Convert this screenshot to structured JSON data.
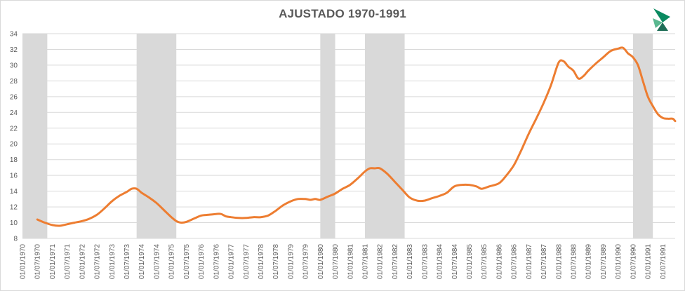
{
  "chart_data": {
    "type": "line",
    "title": "AJUSTADO 1970-1991",
    "ylim": [
      8,
      34
    ],
    "yticks": [
      8,
      10,
      12,
      14,
      16,
      18,
      20,
      22,
      24,
      26,
      28,
      30,
      32,
      34
    ],
    "grid": true,
    "legend": "none",
    "colors": {
      "line": "#ed7d31",
      "shade": "#d9d9d9",
      "grid": "#d9d9d9",
      "text": "#595959"
    },
    "x_axis": {
      "start": "1970-01",
      "end": "1991-12",
      "tick_labels": [
        "01/01/1970",
        "01/07/1970",
        "01/01/1971",
        "01/07/1971",
        "01/01/1972",
        "01/07/1972",
        "01/01/1973",
        "01/07/1973",
        "01/01/1974",
        "01/07/1974",
        "01/01/1975",
        "01/07/1975",
        "01/01/1976",
        "01/07/1976",
        "01/01/1977",
        "01/07/1977",
        "01/01/1978",
        "01/07/1978",
        "01/01/1979",
        "01/07/1979",
        "01/01/1980",
        "01/07/1980",
        "01/01/1981",
        "01/07/1981",
        "01/01/1982",
        "01/07/1982",
        "01/01/1983",
        "01/07/1983",
        "01/01/1984",
        "01/07/1984",
        "01/01/1985",
        "01/07/1985",
        "01/01/1986",
        "01/07/1986",
        "01/01/1987",
        "01/07/1987",
        "01/01/1988",
        "01/07/1988",
        "01/01/1989",
        "01/07/1989",
        "01/01/1990",
        "01/07/1990",
        "01/01/1991",
        "01/07/1991"
      ]
    },
    "shaded_periods": [
      {
        "from": "1970-01",
        "to": "1970-11"
      },
      {
        "from": "1973-11",
        "to": "1975-03"
      },
      {
        "from": "1980-01",
        "to": "1980-07"
      },
      {
        "from": "1981-07",
        "to": "1982-11"
      },
      {
        "from": "1990-07",
        "to": "1991-03"
      }
    ],
    "series": [
      {
        "points": [
          [
            "1970-07",
            10.4
          ],
          [
            "1970-10",
            10.0
          ],
          [
            "1971-01",
            9.7
          ],
          [
            "1971-04",
            9.6
          ],
          [
            "1971-07",
            9.8
          ],
          [
            "1971-10",
            10.0
          ],
          [
            "1972-01",
            10.2
          ],
          [
            "1972-04",
            10.5
          ],
          [
            "1972-07",
            11.0
          ],
          [
            "1972-10",
            11.8
          ],
          [
            "1973-01",
            12.7
          ],
          [
            "1973-04",
            13.4
          ],
          [
            "1973-07",
            13.9
          ],
          [
            "1973-09",
            14.3
          ],
          [
            "1973-11",
            14.3
          ],
          [
            "1974-01",
            13.8
          ],
          [
            "1974-04",
            13.2
          ],
          [
            "1974-07",
            12.5
          ],
          [
            "1974-10",
            11.6
          ],
          [
            "1975-01",
            10.7
          ],
          [
            "1975-03",
            10.2
          ],
          [
            "1975-05",
            10.0
          ],
          [
            "1975-07",
            10.1
          ],
          [
            "1975-10",
            10.5
          ],
          [
            "1976-01",
            10.9
          ],
          [
            "1976-04",
            11.0
          ],
          [
            "1976-07",
            11.1
          ],
          [
            "1976-09",
            11.1
          ],
          [
            "1976-11",
            10.8
          ],
          [
            "1977-01",
            10.7
          ],
          [
            "1977-04",
            10.6
          ],
          [
            "1977-07",
            10.6
          ],
          [
            "1977-10",
            10.7
          ],
          [
            "1978-01",
            10.7
          ],
          [
            "1978-04",
            10.9
          ],
          [
            "1978-07",
            11.5
          ],
          [
            "1978-10",
            12.2
          ],
          [
            "1979-01",
            12.7
          ],
          [
            "1979-04",
            13.0
          ],
          [
            "1979-07",
            13.0
          ],
          [
            "1979-09",
            12.9
          ],
          [
            "1979-11",
            13.0
          ],
          [
            "1980-01",
            12.9
          ],
          [
            "1980-04",
            13.3
          ],
          [
            "1980-07",
            13.7
          ],
          [
            "1980-10",
            14.3
          ],
          [
            "1981-01",
            14.8
          ],
          [
            "1981-04",
            15.6
          ],
          [
            "1981-07",
            16.5
          ],
          [
            "1981-09",
            16.9
          ],
          [
            "1981-11",
            16.9
          ],
          [
            "1982-01",
            16.9
          ],
          [
            "1982-04",
            16.2
          ],
          [
            "1982-07",
            15.2
          ],
          [
            "1982-10",
            14.2
          ],
          [
            "1983-01",
            13.2
          ],
          [
            "1983-04",
            12.8
          ],
          [
            "1983-07",
            12.8
          ],
          [
            "1983-10",
            13.1
          ],
          [
            "1984-01",
            13.4
          ],
          [
            "1984-04",
            13.8
          ],
          [
            "1984-07",
            14.6
          ],
          [
            "1984-10",
            14.8
          ],
          [
            "1985-01",
            14.8
          ],
          [
            "1985-04",
            14.6
          ],
          [
            "1985-06",
            14.3
          ],
          [
            "1985-09",
            14.6
          ],
          [
            "1986-01",
            15.0
          ],
          [
            "1986-04",
            16.0
          ],
          [
            "1986-07",
            17.3
          ],
          [
            "1986-10",
            19.2
          ],
          [
            "1987-01",
            21.3
          ],
          [
            "1987-04",
            23.2
          ],
          [
            "1987-07",
            25.2
          ],
          [
            "1987-10",
            27.5
          ],
          [
            "1988-01",
            30.3
          ],
          [
            "1988-03",
            30.5
          ],
          [
            "1988-05",
            29.8
          ],
          [
            "1988-07",
            29.3
          ],
          [
            "1988-09",
            28.3
          ],
          [
            "1988-11",
            28.6
          ],
          [
            "1989-01",
            29.3
          ],
          [
            "1989-04",
            30.2
          ],
          [
            "1989-07",
            31.0
          ],
          [
            "1989-10",
            31.8
          ],
          [
            "1990-01",
            32.1
          ],
          [
            "1990-03",
            32.2
          ],
          [
            "1990-05",
            31.5
          ],
          [
            "1990-07",
            31.0
          ],
          [
            "1990-09",
            30.0
          ],
          [
            "1990-11",
            28.0
          ],
          [
            "1991-01",
            26.0
          ],
          [
            "1991-03",
            24.8
          ],
          [
            "1991-05",
            23.8
          ],
          [
            "1991-07",
            23.3
          ],
          [
            "1991-09",
            23.2
          ],
          [
            "1991-11",
            23.2
          ],
          [
            "1991-12",
            22.9
          ]
        ]
      }
    ]
  }
}
